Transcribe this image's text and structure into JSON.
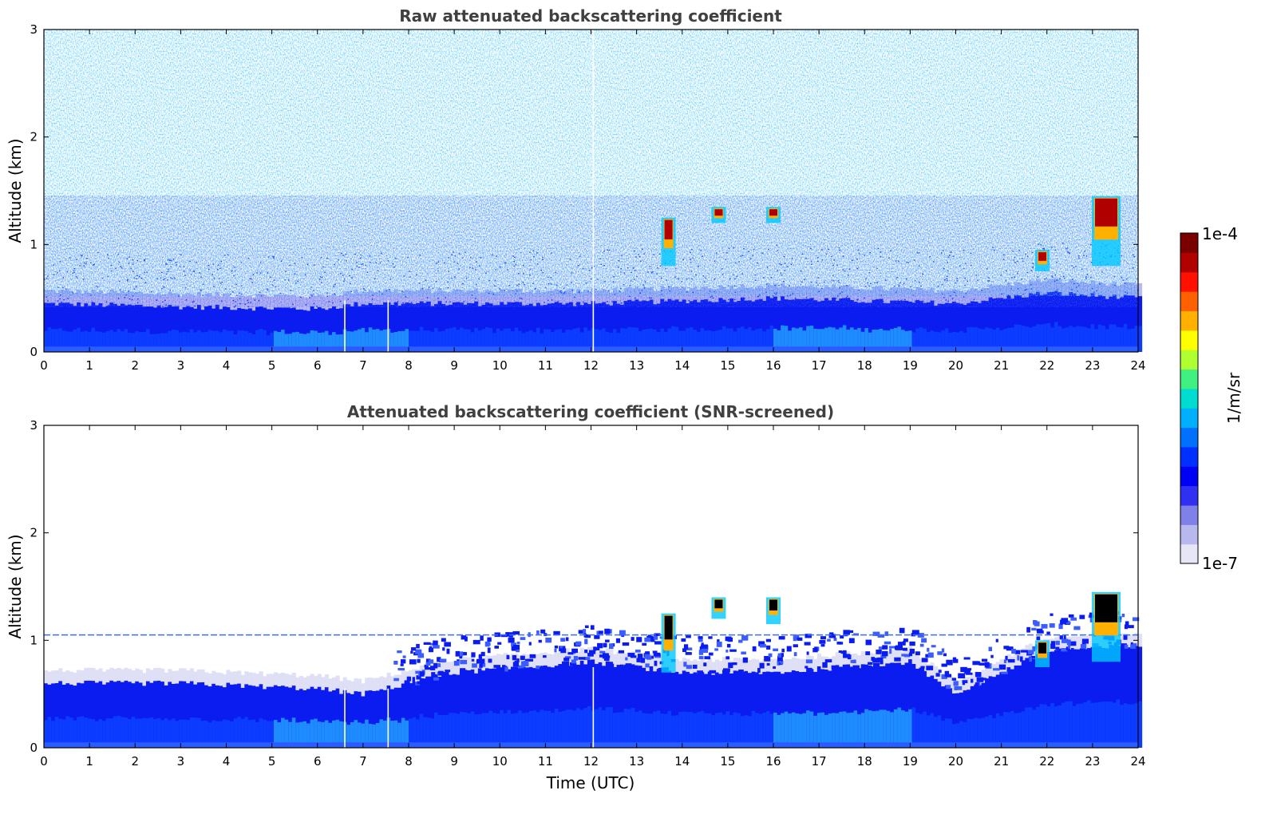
{
  "colors": {
    "background": "#ffffff",
    "title_text": "#404040",
    "colormap": [
      "#e6e6f7",
      "#b8b8ee",
      "#8080ea",
      "#3030f0",
      "#0000f5",
      "#0030ff",
      "#0070ff",
      "#00b0ff",
      "#00dcd0",
      "#40f080",
      "#b0ff30",
      "#ffff00",
      "#ffb000",
      "#ff6000",
      "#ff1000",
      "#b00000",
      "#7a0000"
    ]
  },
  "colorbar": {
    "label": "1/m/sr",
    "max_label": "1e-4",
    "min_label": "1e-7",
    "scale": "log",
    "range": [
      1e-07,
      0.0001
    ]
  },
  "chart_data": [
    {
      "type": "heatmap",
      "title": "Raw attenuated backscattering coefficient",
      "xlabel": "",
      "ylabel": "Altitude (km)",
      "xlim": [
        0,
        24
      ],
      "ylim": [
        0,
        3
      ],
      "x_ticks": [
        "0",
        "1",
        "2",
        "3",
        "4",
        "5",
        "6",
        "7",
        "8",
        "9",
        "10",
        "11",
        "12",
        "13",
        "14",
        "15",
        "16",
        "17",
        "18",
        "19",
        "20",
        "21",
        "22",
        "23",
        "24"
      ],
      "y_ticks": [
        "0",
        "1",
        "2",
        "3"
      ],
      "data_gaps_utc": [
        6.6,
        7.55,
        12.05
      ],
      "boundary_layer_top_km": [
        [
          0,
          0.45
        ],
        [
          3,
          0.42
        ],
        [
          6,
          0.4
        ],
        [
          7,
          0.45
        ],
        [
          9,
          0.45
        ],
        [
          12,
          0.45
        ],
        [
          16,
          0.5
        ],
        [
          20,
          0.45
        ],
        [
          22,
          0.55
        ],
        [
          24,
          0.5
        ]
      ],
      "cloud_features": [
        {
          "time_utc": 13.7,
          "altitude_km": [
            0.8,
            1.25
          ],
          "level": "high"
        },
        {
          "time_utc": 14.8,
          "altitude_km": [
            1.2,
            1.35
          ],
          "level": "high"
        },
        {
          "time_utc": 16.0,
          "altitude_km": [
            1.2,
            1.35
          ],
          "level": "high"
        },
        {
          "time_utc": 21.9,
          "altitude_km": [
            0.75,
            0.95
          ],
          "level": "high"
        },
        {
          "time_utc": 23.3,
          "altitude_km": [
            0.8,
            1.45
          ],
          "level": "very high"
        }
      ],
      "noise": "high above boundary layer"
    },
    {
      "type": "heatmap",
      "title": "Attenuated backscattering coefficient (SNR-screened)",
      "xlabel": "Time (UTC)",
      "ylabel": "Altitude (km)",
      "xlim": [
        0,
        24
      ],
      "ylim": [
        0,
        3
      ],
      "x_ticks": [
        "0",
        "1",
        "2",
        "3",
        "4",
        "5",
        "6",
        "7",
        "8",
        "9",
        "10",
        "11",
        "12",
        "13",
        "14",
        "15",
        "16",
        "17",
        "18",
        "19",
        "20",
        "21",
        "22",
        "23",
        "24"
      ],
      "y_ticks": [
        "0",
        "1",
        "2",
        "3"
      ],
      "data_gaps_utc": [
        6.6,
        7.55,
        12.05
      ],
      "artifact_line_km": 1.05,
      "boundary_layer_top_km": [
        [
          0,
          0.6
        ],
        [
          3,
          0.6
        ],
        [
          6,
          0.55
        ],
        [
          7,
          0.5
        ],
        [
          9,
          0.7
        ],
        [
          12,
          0.8
        ],
        [
          14,
          0.7
        ],
        [
          16,
          0.7
        ],
        [
          19,
          0.8
        ],
        [
          20,
          0.5
        ],
        [
          22,
          0.9
        ],
        [
          24,
          0.95
        ]
      ],
      "cloud_features": [
        {
          "time_utc": 13.7,
          "altitude_km": [
            0.7,
            1.25
          ],
          "level": "high"
        },
        {
          "time_utc": 14.8,
          "altitude_km": [
            1.2,
            1.4
          ],
          "level": "high"
        },
        {
          "time_utc": 16.0,
          "altitude_km": [
            1.15,
            1.4
          ],
          "level": "high"
        },
        {
          "time_utc": 21.9,
          "altitude_km": [
            0.75,
            1.0
          ],
          "level": "high"
        },
        {
          "time_utc": 23.3,
          "altitude_km": [
            0.8,
            1.45
          ],
          "level": "very high"
        }
      ],
      "noise": "screened"
    }
  ]
}
